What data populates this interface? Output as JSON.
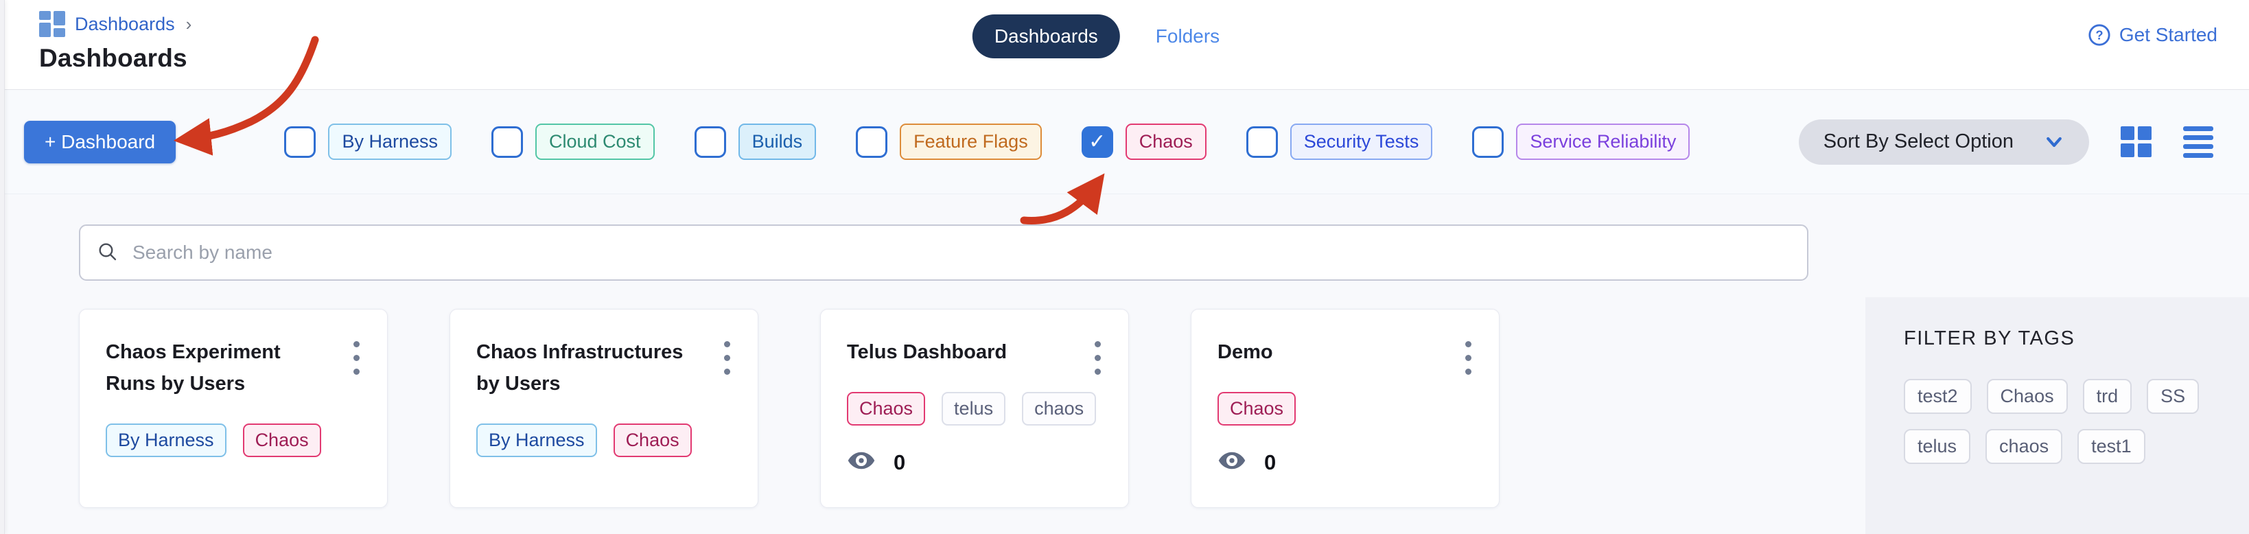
{
  "breadcrumb": {
    "label": "Dashboards",
    "chevron": "›"
  },
  "page_title": "Dashboards",
  "tabs": [
    {
      "label": "Dashboards",
      "active": true
    },
    {
      "label": "Folders",
      "active": false
    }
  ],
  "get_started": {
    "label": "Get Started"
  },
  "toolbar": {
    "new_dashboard_label": "+ Dashboard",
    "sort_label": "Sort By Select Option",
    "filters": [
      {
        "label": "By Harness",
        "checked": false,
        "style": "by_harness"
      },
      {
        "label": "Cloud Cost",
        "checked": false,
        "style": "cloud_cost"
      },
      {
        "label": "Builds",
        "checked": false,
        "style": "builds"
      },
      {
        "label": "Feature Flags",
        "checked": false,
        "style": "feature_flags"
      },
      {
        "label": "Chaos",
        "checked": true,
        "style": "chaos"
      },
      {
        "label": "Security Tests",
        "checked": false,
        "style": "security_tests"
      },
      {
        "label": "Service Reliability",
        "checked": false,
        "style": "service_reliability"
      }
    ]
  },
  "search": {
    "placeholder": "Search by name"
  },
  "cards": [
    {
      "title": "Chaos Experiment Runs by Users",
      "tags": [
        {
          "label": "By Harness",
          "style": "by_harness"
        },
        {
          "label": "Chaos",
          "style": "chaos"
        }
      ],
      "views": null
    },
    {
      "title": "Chaos Infrastructures by Users",
      "tags": [
        {
          "label": "By Harness",
          "style": "by_harness"
        },
        {
          "label": "Chaos",
          "style": "chaos"
        }
      ],
      "views": null
    },
    {
      "title": "Telus Dashboard",
      "tags": [
        {
          "label": "Chaos",
          "style": "chaos"
        },
        {
          "label": "telus",
          "style": "plain"
        },
        {
          "label": "chaos",
          "style": "plain"
        }
      ],
      "views": "0"
    },
    {
      "title": "Demo",
      "tags": [
        {
          "label": "Chaos",
          "style": "chaos"
        }
      ],
      "views": "0"
    }
  ],
  "filter_panel": {
    "title": "FILTER BY TAGS",
    "tags": [
      "test2",
      "Chaos",
      "trd",
      "SS",
      "telus",
      "chaos",
      "test1"
    ]
  },
  "chip_styles": {
    "by_harness": {
      "text": "#1e4aa0",
      "border": "#7fc0e8",
      "bg": "#effaff"
    },
    "cloud_cost": {
      "text": "#2d8a71",
      "border": "#53c6a6",
      "bg": "#eefcf7"
    },
    "builds": {
      "text": "#1b5fad",
      "border": "#71b8e8",
      "bg": "#dcf0fb"
    },
    "feature_flags": {
      "text": "#c06a1f",
      "border": "#dd8c3a",
      "bg": "#fcf4e3"
    },
    "chaos": {
      "text": "#9e1e55",
      "border": "#e23a72",
      "bg": "#fdeef4"
    },
    "security_tests": {
      "text": "#2c48d8",
      "border": "#88a9f2",
      "bg": "#eef2fe"
    },
    "service_reliability": {
      "text": "#7b40dd",
      "border": "#b687ea",
      "bg": "#f8f2fe"
    },
    "plain": {
      "text": "#5a607a",
      "border": "#dcdfe9",
      "bg": "#fcfcfe"
    }
  },
  "colors": {
    "primary_button": "#3b76d9",
    "active_tab": "#1d3458",
    "link": "#3b6fd6",
    "annotation_arrow": "#d0391f"
  }
}
